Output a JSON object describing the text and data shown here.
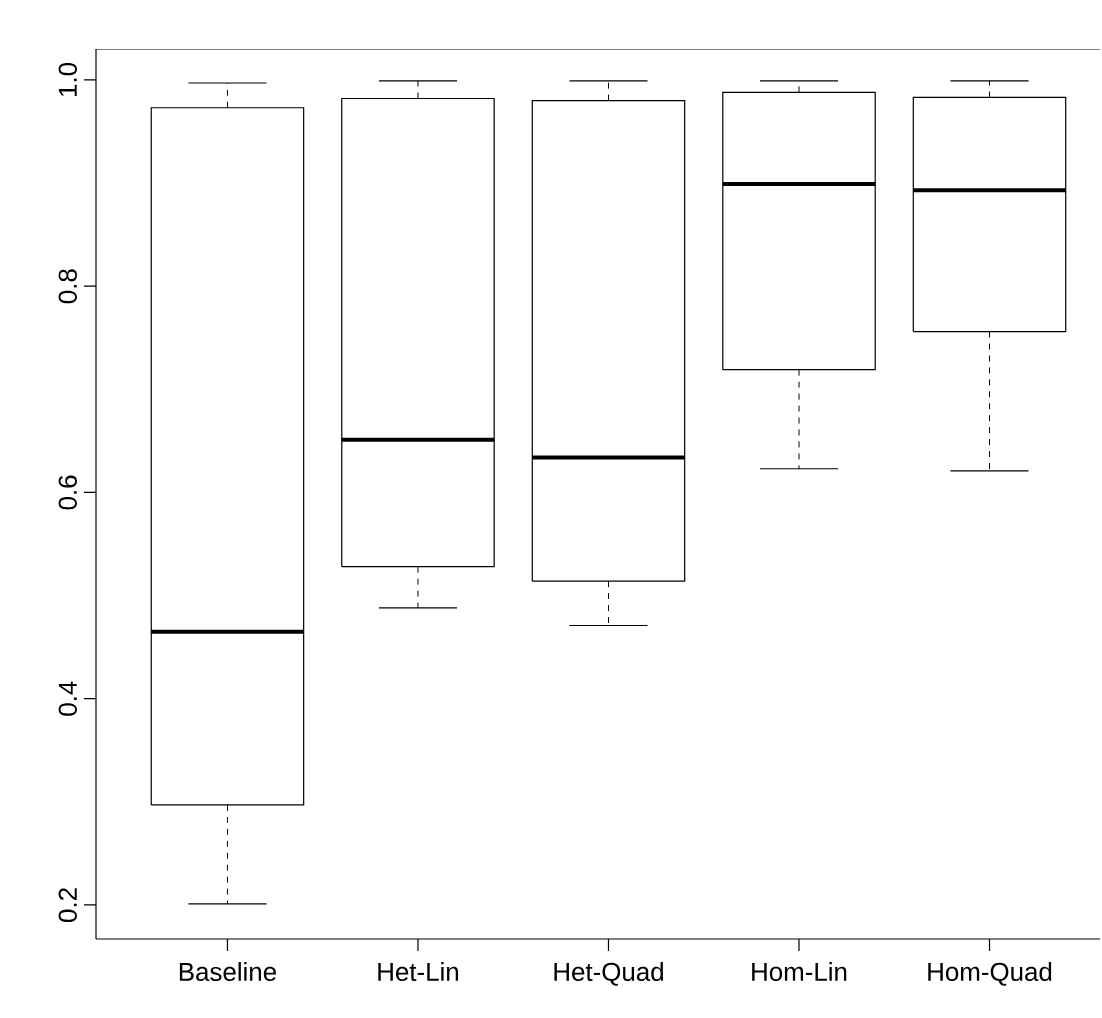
{
  "chart_data": {
    "type": "box",
    "categories": [
      "Baseline",
      "Het-Lin",
      "Het-Quad",
      "Hom-Lin",
      "Hom-Quad"
    ],
    "boxes": [
      {
        "low": 0.201,
        "q1": 0.297,
        "median": 0.465,
        "q3": 0.973,
        "high": 0.997
      },
      {
        "low": 0.488,
        "q1": 0.528,
        "median": 0.651,
        "q3": 0.982,
        "high": 0.999
      },
      {
        "low": 0.471,
        "q1": 0.514,
        "median": 0.634,
        "q3": 0.98,
        "high": 0.999
      },
      {
        "low": 0.623,
        "q1": 0.719,
        "median": 0.899,
        "q3": 0.988,
        "high": 0.999
      },
      {
        "low": 0.621,
        "q1": 0.756,
        "median": 0.893,
        "q3": 0.983,
        "high": 0.999
      }
    ],
    "color": "#000000",
    "ylim": [
      0.167,
      1.03
    ],
    "yticks": [
      0.2,
      0.4,
      0.6,
      0.8,
      {
        "value": 1,
        "label": "1.0"
      }
    ],
    "grid": false
  }
}
